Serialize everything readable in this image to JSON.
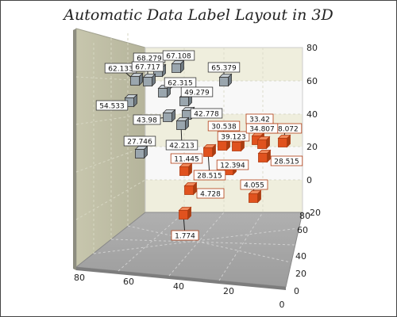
{
  "chart_data": {
    "type": "scatter",
    "title": "Automatic Data Label Layout in 3D",
    "x_ticks": [
      "80",
      "60",
      "40",
      "20",
      "0"
    ],
    "y_ticks": [
      "-20",
      "0",
      "20",
      "40",
      "60",
      "80"
    ],
    "z_ticks": [
      "0",
      "20",
      "40",
      "60",
      "80"
    ],
    "grid": true,
    "series": [
      {
        "color": "#9aa6ae",
        "border": "#333333",
        "points": [
          {
            "label": "62.133"
          },
          {
            "label": "68.279"
          },
          {
            "label": "67.717"
          },
          {
            "label": "67.108"
          },
          {
            "label": "65.379"
          },
          {
            "label": "62.315"
          },
          {
            "label": "49.279"
          },
          {
            "label": "54.533"
          },
          {
            "label": "42.778"
          },
          {
            "label": "43.98"
          },
          {
            "label": "42.213"
          },
          {
            "label": "27.746"
          }
        ]
      },
      {
        "color": "#e0521e",
        "border": "#b03a10",
        "points": [
          {
            "label": "33.42"
          },
          {
            "label": "38.072"
          },
          {
            "label": "30.538"
          },
          {
            "label": "39.123"
          },
          {
            "label": "34.807"
          },
          {
            "label": "28.515"
          },
          {
            "label": "28.515"
          },
          {
            "label": "11.445"
          },
          {
            "label": "12.394"
          },
          {
            "label": "4.055"
          },
          {
            "label": "4.728"
          },
          {
            "label": "1.774"
          }
        ]
      }
    ]
  }
}
